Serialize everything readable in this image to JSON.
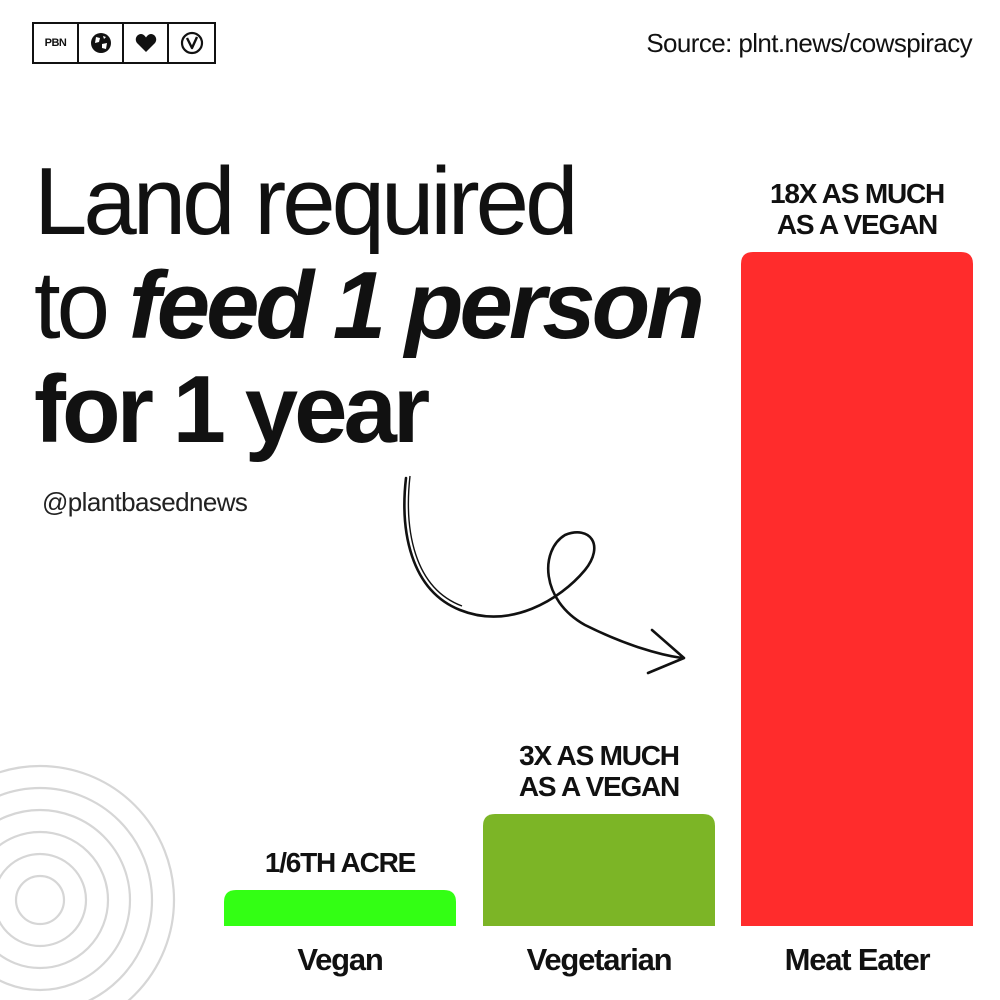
{
  "header": {
    "badges": [
      {
        "text": "PBN",
        "icon": "pbn-logo-icon"
      },
      {
        "icon": "globe-icon"
      },
      {
        "icon": "heart-icon"
      },
      {
        "icon": "vegan-v-icon"
      }
    ],
    "source": "Source: plnt.news/cowspiracy"
  },
  "title": {
    "line1": "Land required",
    "line2a": "to ",
    "line2b": "feed 1 person",
    "line3": "for 1 year"
  },
  "handle": "@plantbasednews",
  "chart_data": {
    "type": "bar",
    "title": "Land required to feed 1 person for 1 year",
    "categories": [
      "Vegan",
      "Vegetarian",
      "Meat Eater"
    ],
    "values": [
      0.167,
      0.5,
      3
    ],
    "unit": "acres",
    "data_labels": [
      [
        "1/6TH ACRE"
      ],
      [
        "3X AS MUCH",
        "AS A VEGAN"
      ],
      [
        "18X AS MUCH",
        "AS A VEGAN"
      ]
    ],
    "colors": [
      "#33ff14",
      "#7cb526",
      "#ff2c2c"
    ],
    "ylim": [
      0,
      3
    ],
    "grid": false,
    "legend": "none"
  }
}
